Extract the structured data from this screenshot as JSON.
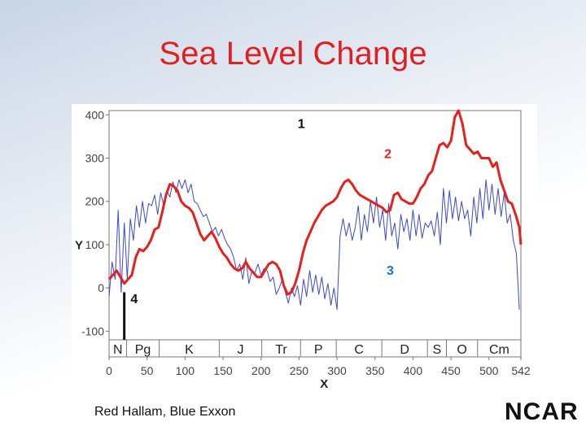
{
  "slide": {
    "title": "Sea Level Change",
    "caption": "Red Hallam, Blue Exxon",
    "logo_text": "NCAR"
  },
  "colors": {
    "title": "#e02020",
    "series_red": "#e8201c",
    "series_blue": "#3a48d6",
    "annotation_blue": "#1e6fd6"
  },
  "chart_data": {
    "type": "line",
    "title": "",
    "xlabel": "X",
    "ylabel": "Y",
    "xlim": [
      0,
      542
    ],
    "ylim": [
      -120,
      410
    ],
    "x_ticks": [
      "0",
      "50",
      "100",
      "150",
      "200",
      "250",
      "300",
      "350",
      "400",
      "450",
      "500",
      "542"
    ],
    "y_ticks": [
      "400",
      "300",
      "200",
      "100",
      "0",
      "-100"
    ],
    "grid": false,
    "periods": [
      {
        "label": "N",
        "start": 0,
        "end": 23
      },
      {
        "label": "Pg",
        "start": 23,
        "end": 66
      },
      {
        "label": "K",
        "start": 66,
        "end": 145
      },
      {
        "label": "J",
        "start": 145,
        "end": 201
      },
      {
        "label": "Tr",
        "start": 201,
        "end": 252
      },
      {
        "label": "P",
        "start": 252,
        "end": 299
      },
      {
        "label": "C",
        "start": 299,
        "end": 359
      },
      {
        "label": "D",
        "start": 359,
        "end": 419
      },
      {
        "label": "S",
        "start": 419,
        "end": 444
      },
      {
        "label": "O",
        "start": 444,
        "end": 485
      },
      {
        "label": "Cm",
        "start": 485,
        "end": 542
      }
    ],
    "annotations": [
      {
        "label": "1",
        "x": 253,
        "y": 370,
        "color": "#111111"
      },
      {
        "label": "2",
        "x": 367,
        "y": 300,
        "color": "#e8201c"
      },
      {
        "label": "3",
        "x": 370,
        "y": 30,
        "color": "#1e6fd6"
      },
      {
        "label": "4",
        "x": 33,
        "y": -35,
        "color": "#111111"
      }
    ],
    "marker_bar": {
      "x": 20,
      "y_from": -10,
      "y_to": -120
    },
    "series": [
      {
        "style": "red",
        "x": [
          0,
          5,
          10,
          15,
          20,
          25,
          30,
          35,
          40,
          45,
          50,
          55,
          60,
          65,
          70,
          75,
          80,
          85,
          90,
          95,
          100,
          105,
          110,
          115,
          120,
          125,
          130,
          135,
          140,
          145,
          150,
          155,
          160,
          165,
          170,
          175,
          180,
          185,
          190,
          195,
          200,
          205,
          210,
          215,
          220,
          225,
          230,
          235,
          240,
          245,
          250,
          255,
          260,
          265,
          270,
          275,
          280,
          285,
          290,
          295,
          300,
          305,
          310,
          315,
          320,
          325,
          330,
          335,
          340,
          345,
          350,
          355,
          360,
          365,
          370,
          375,
          380,
          385,
          390,
          395,
          400,
          405,
          410,
          415,
          420,
          425,
          430,
          435,
          440,
          445,
          450,
          455,
          460,
          465,
          470,
          475,
          480,
          485,
          490,
          495,
          500,
          505,
          510,
          515,
          520,
          525,
          530,
          535,
          540,
          542
        ],
        "y": [
          20,
          30,
          40,
          25,
          10,
          20,
          30,
          70,
          90,
          85,
          95,
          110,
          135,
          140,
          175,
          215,
          240,
          235,
          225,
          200,
          190,
          185,
          175,
          150,
          125,
          110,
          120,
          130,
          115,
          95,
          80,
          70,
          55,
          45,
          40,
          45,
          60,
          45,
          35,
          25,
          25,
          40,
          55,
          60,
          55,
          40,
          5,
          -15,
          -10,
          10,
          40,
          80,
          110,
          130,
          150,
          165,
          180,
          190,
          195,
          200,
          210,
          230,
          245,
          250,
          240,
          225,
          215,
          210,
          205,
          200,
          195,
          190,
          185,
          175,
          180,
          215,
          220,
          205,
          200,
          195,
          195,
          210,
          230,
          240,
          260,
          270,
          300,
          330,
          335,
          325,
          340,
          395,
          410,
          380,
          330,
          320,
          310,
          315,
          300,
          300,
          300,
          280,
          290,
          250,
          225,
          200,
          195,
          170,
          140,
          100
        ]
      },
      {
        "style": "blue",
        "x": [
          0,
          4,
          8,
          12,
          16,
          20,
          24,
          28,
          32,
          36,
          40,
          44,
          48,
          52,
          56,
          60,
          64,
          68,
          72,
          76,
          80,
          84,
          88,
          92,
          96,
          100,
          104,
          108,
          112,
          116,
          120,
          124,
          128,
          132,
          136,
          140,
          144,
          148,
          152,
          156,
          160,
          164,
          168,
          172,
          176,
          180,
          184,
          188,
          192,
          196,
          200,
          204,
          208,
          212,
          216,
          220,
          224,
          228,
          232,
          236,
          240,
          244,
          248,
          252,
          256,
          260,
          264,
          268,
          272,
          276,
          280,
          284,
          288,
          292,
          296,
          300,
          304,
          308,
          312,
          316,
          320,
          324,
          328,
          332,
          336,
          340,
          344,
          348,
          352,
          356,
          360,
          364,
          368,
          372,
          376,
          380,
          384,
          388,
          392,
          396,
          400,
          404,
          408,
          412,
          416,
          420,
          424,
          428,
          432,
          436,
          440,
          444,
          448,
          452,
          456,
          460,
          464,
          468,
          472,
          476,
          480,
          484,
          488,
          492,
          496,
          500,
          504,
          508,
          512,
          516,
          520,
          524,
          528,
          532,
          536,
          540
        ],
        "y": [
          -20,
          60,
          20,
          180,
          -10,
          150,
          20,
          160,
          110,
          190,
          140,
          200,
          150,
          195,
          190,
          215,
          170,
          220,
          190,
          225,
          210,
          245,
          220,
          250,
          230,
          250,
          220,
          240,
          200,
          195,
          180,
          165,
          170,
          150,
          130,
          140,
          120,
          135,
          115,
          100,
          90,
          70,
          40,
          55,
          20,
          70,
          10,
          40,
          35,
          55,
          30,
          45,
          40,
          15,
          25,
          -15,
          0,
          20,
          -10,
          -35,
          0,
          -20,
          5,
          -40,
          20,
          -20,
          40,
          -10,
          30,
          -15,
          25,
          -25,
          10,
          -40,
          0,
          -50,
          120,
          160,
          120,
          150,
          110,
          140,
          190,
          110,
          170,
          130,
          200,
          150,
          210,
          140,
          180,
          110,
          195,
          120,
          150,
          90,
          170,
          130,
          160,
          110,
          180,
          120,
          170,
          115,
          150,
          140,
          155,
          120,
          175,
          100,
          230,
          150,
          225,
          160,
          210,
          155,
          200,
          160,
          180,
          120,
          210,
          150,
          230,
          160,
          250,
          180,
          240,
          170,
          230,
          165,
          220,
          150,
          170,
          110,
          80,
          -50
        ]
      }
    ]
  }
}
